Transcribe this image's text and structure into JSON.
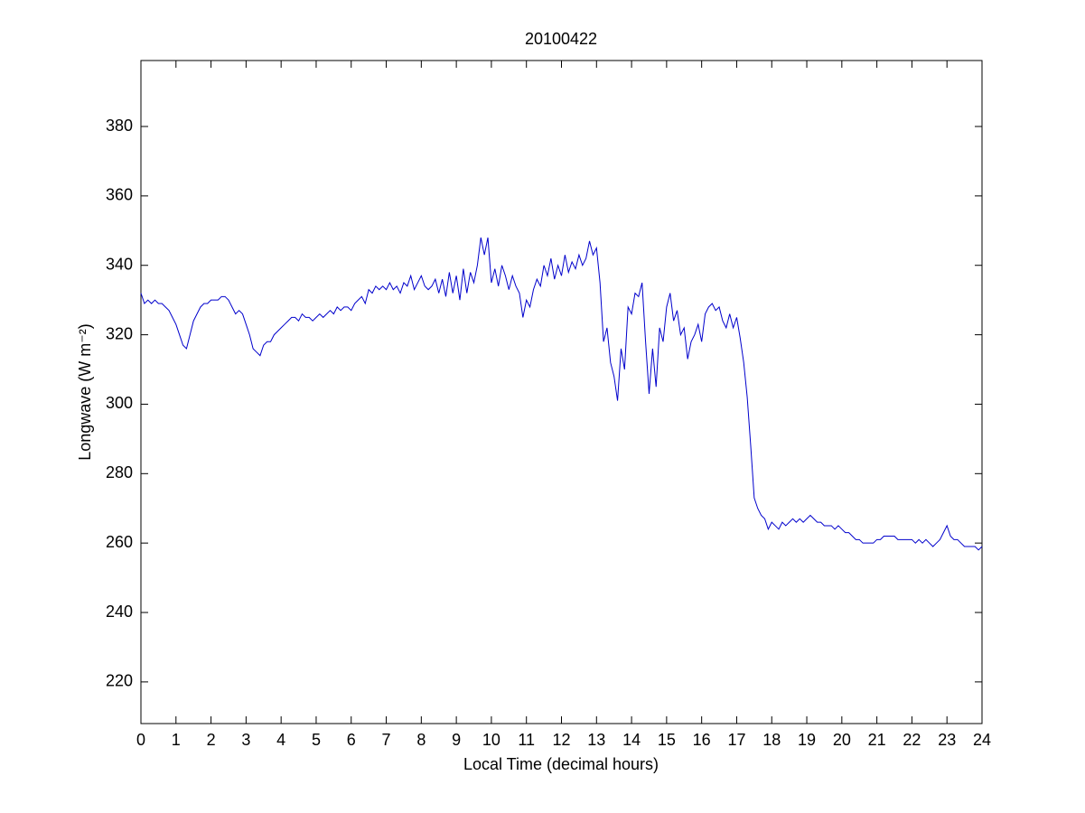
{
  "chart_data": {
    "type": "line",
    "title": "20100422",
    "x_label": "Local Time (decimal hours)",
    "y_label": "Longwave (W m⁻²)",
    "color": "#0000cc",
    "xlim": [
      0,
      24
    ],
    "xticks": [
      0,
      1,
      2,
      3,
      4,
      5,
      6,
      7,
      8,
      9,
      10,
      11,
      12,
      13,
      14,
      15,
      16,
      17,
      18,
      19,
      20,
      21,
      22,
      23,
      24
    ],
    "ylim": [
      208,
      399
    ],
    "yticks": [
      220,
      240,
      260,
      280,
      300,
      320,
      340,
      360,
      380
    ],
    "grid": false,
    "x": [
      0,
      0.1,
      0.2,
      0.3,
      0.4,
      0.5,
      0.6,
      0.7,
      0.8,
      0.9,
      1,
      1.1,
      1.2,
      1.3,
      1.4,
      1.5,
      1.6,
      1.7,
      1.8,
      1.9,
      2,
      2.1,
      2.2,
      2.3,
      2.4,
      2.5,
      2.6,
      2.7,
      2.8,
      2.9,
      3,
      3.1,
      3.2,
      3.3,
      3.4,
      3.5,
      3.6,
      3.7,
      3.8,
      3.9,
      4,
      4.1,
      4.2,
      4.3,
      4.4,
      4.5,
      4.6,
      4.7,
      4.8,
      4.9,
      5,
      5.1,
      5.2,
      5.3,
      5.4,
      5.5,
      5.6,
      5.7,
      5.8,
      5.9,
      6,
      6.1,
      6.2,
      6.3,
      6.4,
      6.5,
      6.6,
      6.7,
      6.8,
      6.9,
      7,
      7.1,
      7.2,
      7.3,
      7.4,
      7.5,
      7.6,
      7.7,
      7.8,
      7.9,
      8,
      8.1,
      8.2,
      8.3,
      8.4,
      8.5,
      8.6,
      8.7,
      8.8,
      8.9,
      9,
      9.1,
      9.2,
      9.3,
      9.4,
      9.5,
      9.6,
      9.7,
      9.8,
      9.9,
      10,
      10.1,
      10.2,
      10.3,
      10.4,
      10.5,
      10.6,
      10.7,
      10.8,
      10.9,
      11,
      11.1,
      11.2,
      11.3,
      11.4,
      11.5,
      11.6,
      11.7,
      11.8,
      11.9,
      12,
      12.1,
      12.2,
      12.3,
      12.4,
      12.5,
      12.6,
      12.7,
      12.8,
      12.9,
      13,
      13.1,
      13.2,
      13.3,
      13.4,
      13.5,
      13.6,
      13.7,
      13.8,
      13.9,
      14,
      14.1,
      14.2,
      14.3,
      14.4,
      14.5,
      14.6,
      14.7,
      14.8,
      14.9,
      15,
      15.1,
      15.2,
      15.3,
      15.4,
      15.5,
      15.6,
      15.7,
      15.8,
      15.9,
      16,
      16.1,
      16.2,
      16.3,
      16.4,
      16.5,
      16.6,
      16.7,
      16.8,
      16.9,
      17,
      17.1,
      17.2,
      17.3,
      17.4,
      17.5,
      17.6,
      17.7,
      17.8,
      17.9,
      18,
      18.1,
      18.2,
      18.3,
      18.4,
      18.5,
      18.6,
      18.7,
      18.8,
      18.9,
      19,
      19.1,
      19.2,
      19.3,
      19.4,
      19.5,
      19.6,
      19.7,
      19.8,
      19.9,
      20,
      20.1,
      20.2,
      20.3,
      20.4,
      20.5,
      20.6,
      20.7,
      20.8,
      20.9,
      21,
      21.1,
      21.2,
      21.3,
      21.4,
      21.5,
      21.6,
      21.7,
      21.8,
      21.9,
      22,
      22.1,
      22.2,
      22.3,
      22.4,
      22.5,
      22.6,
      22.7,
      22.8,
      22.9,
      23,
      23.1,
      23.2,
      23.3,
      23.4,
      23.5,
      23.6,
      23.7,
      23.8,
      23.9,
      24
    ],
    "values": [
      332,
      329,
      330,
      329,
      330,
      329,
      329,
      328,
      327,
      325,
      323,
      320,
      317,
      316,
      320,
      324,
      326,
      328,
      329,
      329,
      330,
      330,
      330,
      331,
      331,
      330,
      328,
      326,
      327,
      326,
      323,
      320,
      316,
      315,
      314,
      317,
      318,
      318,
      320,
      321,
      322,
      323,
      324,
      325,
      325,
      324,
      326,
      325,
      325,
      324,
      325,
      326,
      325,
      326,
      327,
      326,
      328,
      327,
      328,
      328,
      327,
      329,
      330,
      331,
      329,
      333,
      332,
      334,
      333,
      334,
      333,
      335,
      333,
      334,
      332,
      335,
      334,
      337,
      333,
      335,
      337,
      334,
      333,
      334,
      336,
      332,
      336,
      331,
      338,
      332,
      337,
      330,
      339,
      332,
      338,
      335,
      340,
      348,
      343,
      348,
      335,
      339,
      334,
      340,
      337,
      333,
      337,
      334,
      332,
      325,
      330,
      328,
      333,
      336,
      334,
      340,
      337,
      342,
      336,
      340,
      337,
      343,
      338,
      341,
      339,
      343,
      340,
      342,
      347,
      343,
      345,
      335,
      318,
      322,
      312,
      308,
      301,
      316,
      310,
      328,
      326,
      332,
      331,
      335,
      318,
      303,
      316,
      305,
      322,
      318,
      328,
      332,
      324,
      327,
      320,
      322,
      313,
      318,
      320,
      323,
      318,
      326,
      328,
      329,
      327,
      328,
      324,
      322,
      326,
      322,
      325,
      319,
      312,
      302,
      288,
      273,
      270,
      268,
      267,
      264,
      266,
      265,
      264,
      266,
      265,
      266,
      267,
      266,
      267,
      266,
      267,
      268,
      267,
      266,
      266,
      265,
      265,
      265,
      264,
      265,
      264,
      263,
      263,
      262,
      261,
      261,
      260,
      260,
      260,
      260,
      261,
      261,
      262,
      262,
      262,
      262,
      261,
      261,
      261,
      261,
      261,
      260,
      261,
      260,
      261,
      260,
      259,
      260,
      261,
      263,
      265,
      262,
      261,
      261,
      260,
      259,
      259,
      259,
      259,
      258,
      259
    ]
  }
}
